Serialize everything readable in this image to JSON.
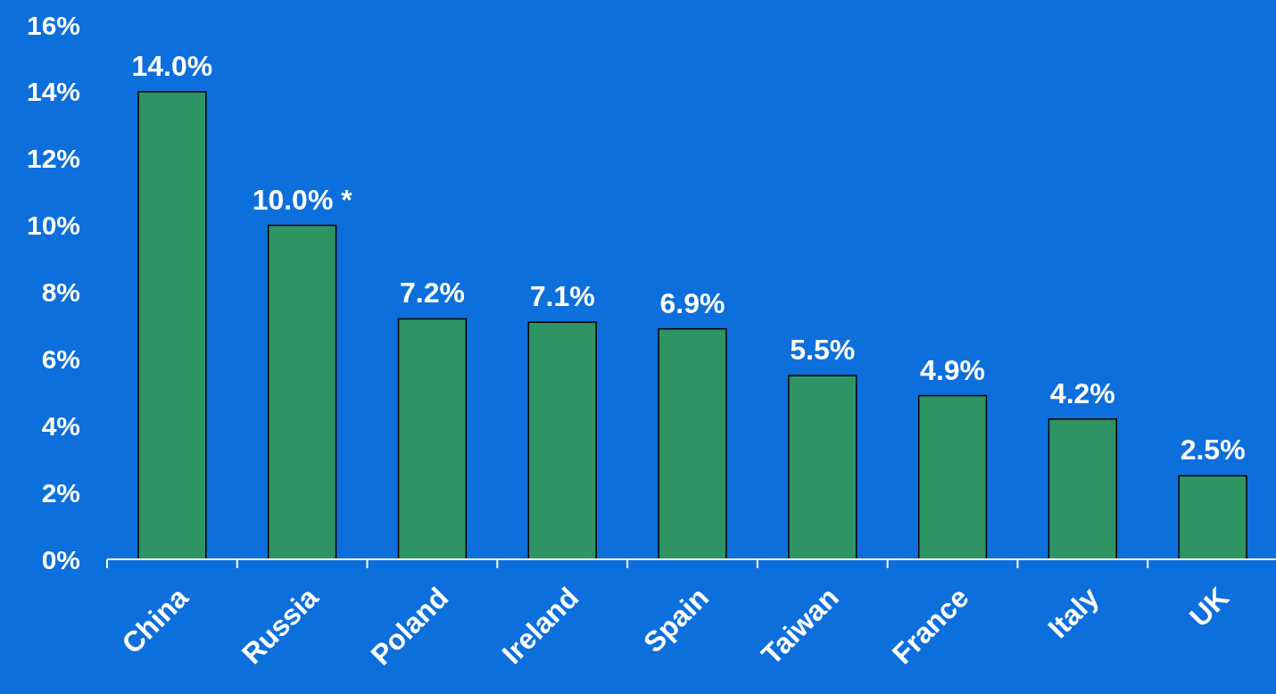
{
  "chart_data": {
    "type": "bar",
    "categories": [
      "China",
      "Russia",
      "Poland",
      "Ireland",
      "Spain",
      "Taiwan",
      "France",
      "Italy",
      "UK"
    ],
    "values": [
      14.0,
      10.0,
      7.2,
      7.1,
      6.9,
      5.5,
      4.9,
      4.2,
      2.5
    ],
    "value_labels": [
      "14.0%",
      "10.0% *",
      "7.2%",
      "7.1%",
      "6.9%",
      "5.5%",
      "4.9%",
      "4.2%",
      "2.5%"
    ],
    "color": "#2e9464",
    "ylim": [
      0,
      16
    ],
    "yticks": [
      {
        "value": 0,
        "label": "0%"
      },
      {
        "value": 2,
        "label": "2%"
      },
      {
        "value": 4,
        "label": "4%"
      },
      {
        "value": 6,
        "label": "6%"
      },
      {
        "value": 8,
        "label": "8%"
      },
      {
        "value": 10,
        "label": "10%"
      },
      {
        "value": 12,
        "label": "12%"
      },
      {
        "value": 14,
        "label": "14%"
      },
      {
        "value": 16,
        "label": "16%"
      }
    ],
    "grid": false
  }
}
